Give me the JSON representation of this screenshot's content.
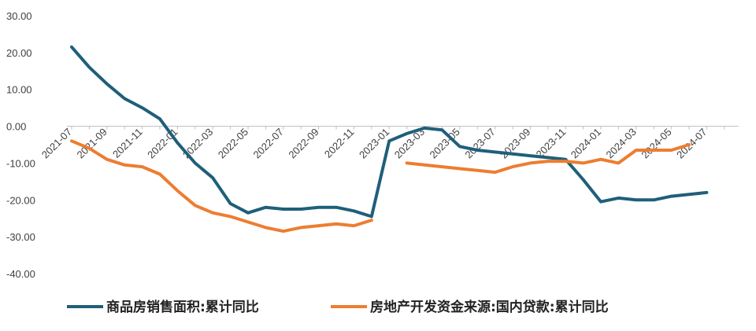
{
  "chart_data": {
    "type": "line",
    "x": [
      "2021-07",
      "2021-08",
      "2021-09",
      "2021-10",
      "2021-11",
      "2021-12",
      "2022-01",
      "2022-02",
      "2022-03",
      "2022-04",
      "2022-05",
      "2022-06",
      "2022-07",
      "2022-08",
      "2022-09",
      "2022-10",
      "2022-11",
      "2022-12",
      "2023-01",
      "2023-02",
      "2023-03",
      "2023-04",
      "2023-05",
      "2023-06",
      "2023-07",
      "2023-08",
      "2023-09",
      "2023-10",
      "2023-11",
      "2023-12",
      "2024-01",
      "2024-02",
      "2024-03",
      "2024-04",
      "2024-05",
      "2024-06",
      "2024-07",
      "2024-08"
    ],
    "x_tick_labels": [
      "2021-07",
      "2021-09",
      "2021-11",
      "2022-01",
      "2022-03",
      "2022-05",
      "2022-07",
      "2022-09",
      "2022-11",
      "2023-01",
      "2023-03",
      "2023-05",
      "2023-07",
      "2023-09",
      "2023-11",
      "2024-01",
      "2024-03",
      "2024-05",
      "2024-07"
    ],
    "y_tick_labels": [
      "30.00",
      "20.00",
      "10.00",
      "0.00",
      "-10.00",
      "-20.00",
      "-30.00",
      "-40.00"
    ],
    "ylim": [
      -40,
      30
    ],
    "grid": false,
    "legend_position": "bottom",
    "series": [
      {
        "name": "商品房销售面积:累计同比",
        "color": "#1f5f7a",
        "values": [
          21.5,
          16.0,
          11.5,
          7.5,
          5.0,
          2.0,
          -4.5,
          -10.0,
          -14.0,
          -21.0,
          -23.5,
          -22.0,
          -22.5,
          -22.5,
          -22.0,
          -22.0,
          -23.0,
          -24.5,
          -4.0,
          -2.0,
          -0.5,
          -1.0,
          -5.5,
          -6.5,
          -7.0,
          -7.5,
          -8.0,
          -8.5,
          -9.0,
          -14.5,
          -20.5,
          -19.5,
          -20.0,
          -20.0,
          -19.0,
          -18.5,
          -18.0,
          null
        ]
      },
      {
        "name": "房地产开发资金来源:国内贷款:累计同比",
        "color": "#ed7d31",
        "values": [
          -4.0,
          -6.0,
          -9.0,
          -10.5,
          -11.0,
          -13.0,
          -17.5,
          -21.5,
          -23.5,
          -24.5,
          -26.0,
          -27.5,
          -28.5,
          -27.5,
          -27.0,
          -26.5,
          -27.0,
          -25.5,
          null,
          -10.0,
          -10.5,
          -11.0,
          -11.5,
          -12.0,
          -12.5,
          -11.0,
          -10.0,
          -9.5,
          -9.5,
          -10.0,
          -9.0,
          -10.0,
          -6.5,
          -6.5,
          -6.5,
          -5.0,
          null,
          null
        ]
      }
    ]
  }
}
